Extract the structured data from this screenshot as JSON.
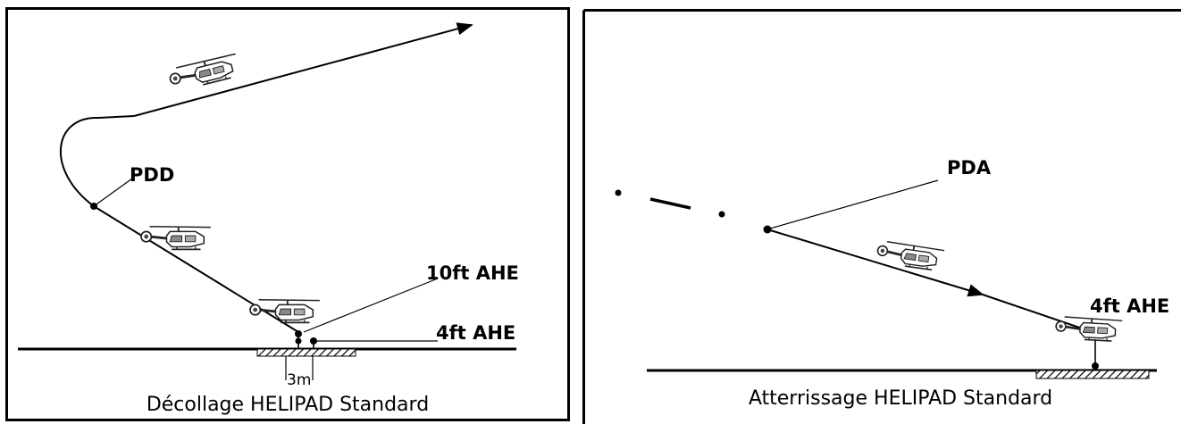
{
  "takeoff": {
    "point_label": "PDD",
    "label_10ft": "10ft AHE",
    "label_4ft": "4ft AHE",
    "distance_label": "3m",
    "caption": "Décollage HELIPAD Standard"
  },
  "landing": {
    "point_label": "PDA",
    "label_4ft": "4ft AHE",
    "caption": "Atterrissage HELIPAD Standard"
  }
}
